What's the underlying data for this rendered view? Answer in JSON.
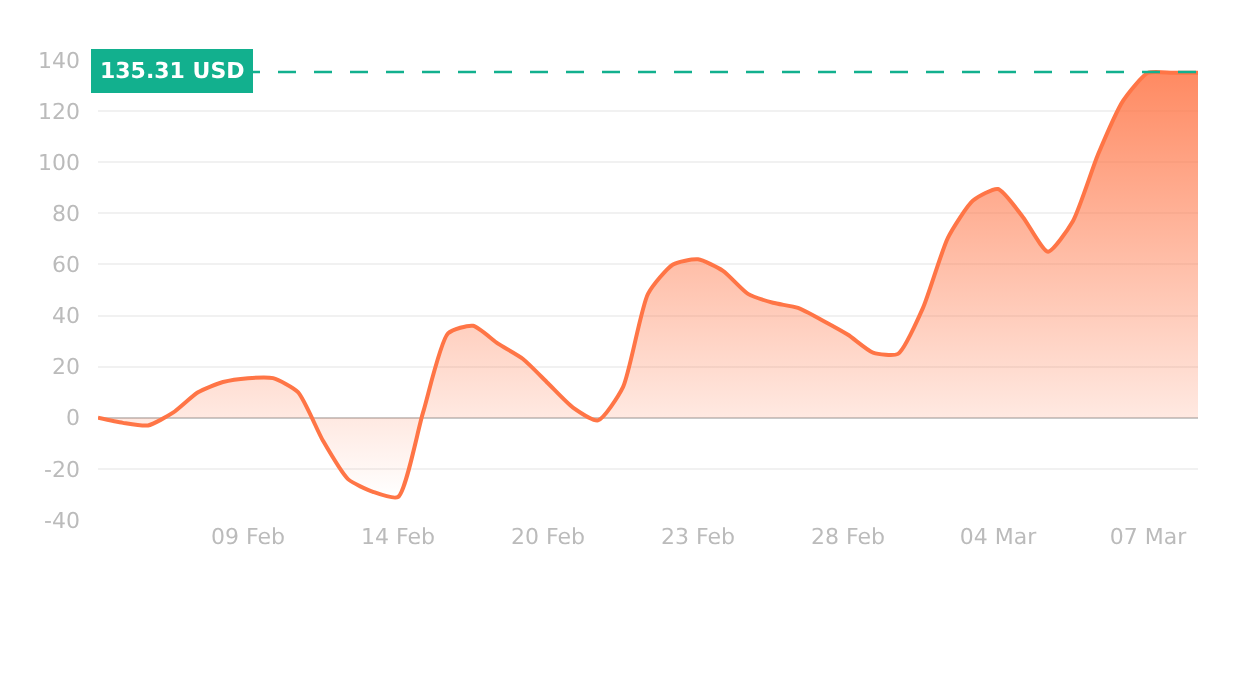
{
  "chart_data": {
    "type": "area",
    "categories": [
      null,
      null,
      null,
      null,
      null,
      null,
      "09 Feb",
      null,
      null,
      null,
      null,
      null,
      "14 Feb",
      null,
      null,
      null,
      null,
      null,
      "20 Feb",
      null,
      null,
      null,
      null,
      null,
      "23 Feb",
      null,
      null,
      null,
      null,
      null,
      "28 Feb",
      null,
      null,
      null,
      null,
      null,
      "04 Mar",
      null,
      null,
      null,
      null,
      null,
      "07 Mar",
      null,
      null
    ],
    "series": [
      {
        "color": "#ff7546",
        "values": [
          0,
          -2,
          -3,
          2,
          10,
          14,
          15.5,
          15.5,
          10,
          -9,
          -24,
          -29,
          -31,
          2,
          33,
          36,
          29,
          23,
          13.5,
          4,
          -1,
          12,
          48.5,
          60,
          62,
          57.5,
          48.5,
          45,
          43,
          38,
          32.5,
          25.5,
          25,
          43,
          70.5,
          85,
          89.5,
          78.5,
          65,
          77,
          103,
          124,
          135,
          135,
          135
        ]
      }
    ],
    "ylim": [
      -40,
      140
    ],
    "yticks": [
      -40,
      -20,
      0,
      20,
      40,
      60,
      80,
      100,
      120,
      140
    ],
    "grid": "y",
    "ref_lines": [
      {
        "axis": "y",
        "value": 135.31,
        "label": "135.31 USD",
        "color": "#12b08e",
        "line_style": "dashed"
      }
    ]
  }
}
